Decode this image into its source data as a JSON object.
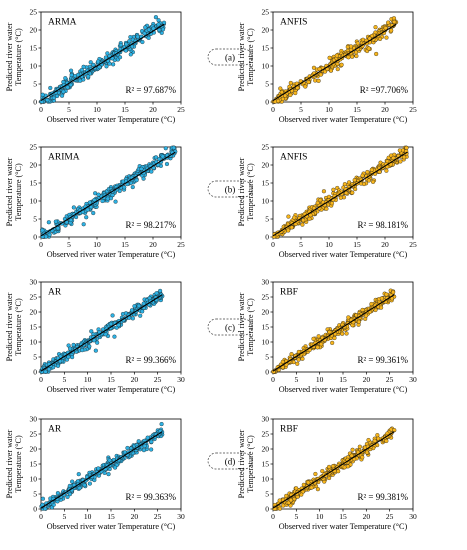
{
  "figure": {
    "panel_tags": [
      "(a)",
      "(b)",
      "(c)",
      "(d)"
    ]
  },
  "colors": {
    "blue_fill": "#2DB1E3",
    "orange_fill": "#F7B51C",
    "marker_edge": "#1a1a1a",
    "fit_line": "#000000"
  },
  "chart_data": [
    {
      "type": "scatter",
      "model": "ARMA",
      "r2_text": "R² = 97.687%",
      "xlabel": "Observed river water Temperature (°C)",
      "ylabel": "Predicted river water Temperature (°C)",
      "xlim": [
        0,
        25
      ],
      "ylim": [
        0,
        25
      ],
      "x_ticks": [
        0,
        5,
        10,
        15,
        20,
        25
      ],
      "y_ticks": [
        0,
        5,
        10,
        15,
        20,
        25
      ],
      "data_range": [
        0,
        22
      ],
      "fit_line": [
        [
          0,
          0.4
        ],
        [
          22,
          21.6
        ]
      ],
      "color": "blue",
      "seed": 11,
      "n_points": 300
    },
    {
      "type": "scatter",
      "model": "ANFIS",
      "r2_text": "R² =97.706%",
      "xlabel": "Observed river water Temperature (°C)",
      "ylabel": "Predicted river water Temperature (°C)",
      "xlim": [
        0,
        25
      ],
      "ylim": [
        0,
        25
      ],
      "x_ticks": [
        0,
        5,
        10,
        15,
        20,
        25
      ],
      "y_ticks": [
        0,
        5,
        10,
        15,
        20,
        25
      ],
      "data_range": [
        0,
        22
      ],
      "fit_line": [
        [
          0,
          0.4
        ],
        [
          22,
          21.6
        ]
      ],
      "color": "orange",
      "seed": 23,
      "n_points": 300
    },
    {
      "type": "scatter",
      "model": "ARIMA",
      "r2_text": "R² = 98.217%",
      "xlabel": "Observed river water Temperature (°C)",
      "ylabel": "Predicted river water Temperature (°C)",
      "xlim": [
        0,
        25
      ],
      "ylim": [
        0,
        25
      ],
      "x_ticks": [
        0,
        5,
        10,
        15,
        20,
        25
      ],
      "y_ticks": [
        0,
        5,
        10,
        15,
        20,
        25
      ],
      "data_range": [
        0,
        24
      ],
      "fit_line": [
        [
          0,
          0.3
        ],
        [
          24,
          23.6
        ]
      ],
      "color": "blue",
      "seed": 37,
      "n_points": 320
    },
    {
      "type": "scatter",
      "model": "ANFIS",
      "r2_text": "R² = 98.181%",
      "xlabel": "Observed river water Temperature (°C)",
      "ylabel": "Predicted river water Temperature (°C)",
      "xlim": [
        0,
        25
      ],
      "ylim": [
        0,
        25
      ],
      "x_ticks": [
        0,
        5,
        10,
        15,
        20,
        25
      ],
      "y_ticks": [
        0,
        5,
        10,
        15,
        20,
        25
      ],
      "data_range": [
        0,
        24
      ],
      "fit_line": [
        [
          0,
          0.3
        ],
        [
          24,
          23.6
        ]
      ],
      "color": "orange",
      "seed": 41,
      "n_points": 320
    },
    {
      "type": "scatter",
      "model": "AR",
      "r2_text": "R² = 99.366%",
      "xlabel": "Observed river water Temperature (°C)",
      "ylabel": "Predicted river water Temperature (°C)",
      "xlim": [
        0,
        30
      ],
      "ylim": [
        0,
        30
      ],
      "x_ticks": [
        0,
        5,
        10,
        15,
        20,
        25,
        30
      ],
      "y_ticks": [
        0,
        5,
        10,
        15,
        20,
        25,
        30
      ],
      "data_range": [
        0,
        26
      ],
      "fit_line": [
        [
          0,
          0.3
        ],
        [
          26,
          25.8
        ]
      ],
      "color": "blue",
      "seed": 53,
      "n_points": 320
    },
    {
      "type": "scatter",
      "model": "RBF",
      "r2_text": "R² = 99.361%",
      "xlabel": "Observed river water Temperature (°C)",
      "ylabel": "Predicted river water Temperature (°C)",
      "xlim": [
        0,
        30
      ],
      "ylim": [
        0,
        30
      ],
      "x_ticks": [
        0,
        5,
        10,
        15,
        20,
        25,
        30
      ],
      "y_ticks": [
        0,
        5,
        10,
        15,
        20,
        25,
        30
      ],
      "data_range": [
        0,
        26
      ],
      "fit_line": [
        [
          0,
          0.3
        ],
        [
          26,
          25.8
        ]
      ],
      "color": "orange",
      "seed": 67,
      "n_points": 320
    },
    {
      "type": "scatter",
      "model": "AR",
      "r2_text": "R² = 99.363%",
      "xlabel": "Observed river water Temperature (°C)",
      "ylabel": "Predicted river water Temperature (°C)",
      "xlim": [
        0,
        30
      ],
      "ylim": [
        0,
        30
      ],
      "x_ticks": [
        0,
        5,
        10,
        15,
        20,
        25,
        30
      ],
      "y_ticks": [
        0,
        5,
        10,
        15,
        20,
        25,
        30
      ],
      "data_range": [
        0,
        26
      ],
      "fit_line": [
        [
          0,
          0.3
        ],
        [
          26,
          25.8
        ]
      ],
      "color": "blue",
      "seed": 71,
      "n_points": 320
    },
    {
      "type": "scatter",
      "model": "RBF",
      "r2_text": "R² = 99.381%",
      "xlabel": "Observed river water Temperature (°C)",
      "ylabel": "Predicted river water Temperature (°C)",
      "xlim": [
        0,
        30
      ],
      "ylim": [
        0,
        30
      ],
      "x_ticks": [
        0,
        5,
        10,
        15,
        20,
        25,
        30
      ],
      "y_ticks": [
        0,
        5,
        10,
        15,
        20,
        25,
        30
      ],
      "data_range": [
        0,
        26
      ],
      "fit_line": [
        [
          0,
          0.3
        ],
        [
          26,
          25.8
        ]
      ],
      "color": "orange",
      "seed": 83,
      "n_points": 320
    }
  ]
}
